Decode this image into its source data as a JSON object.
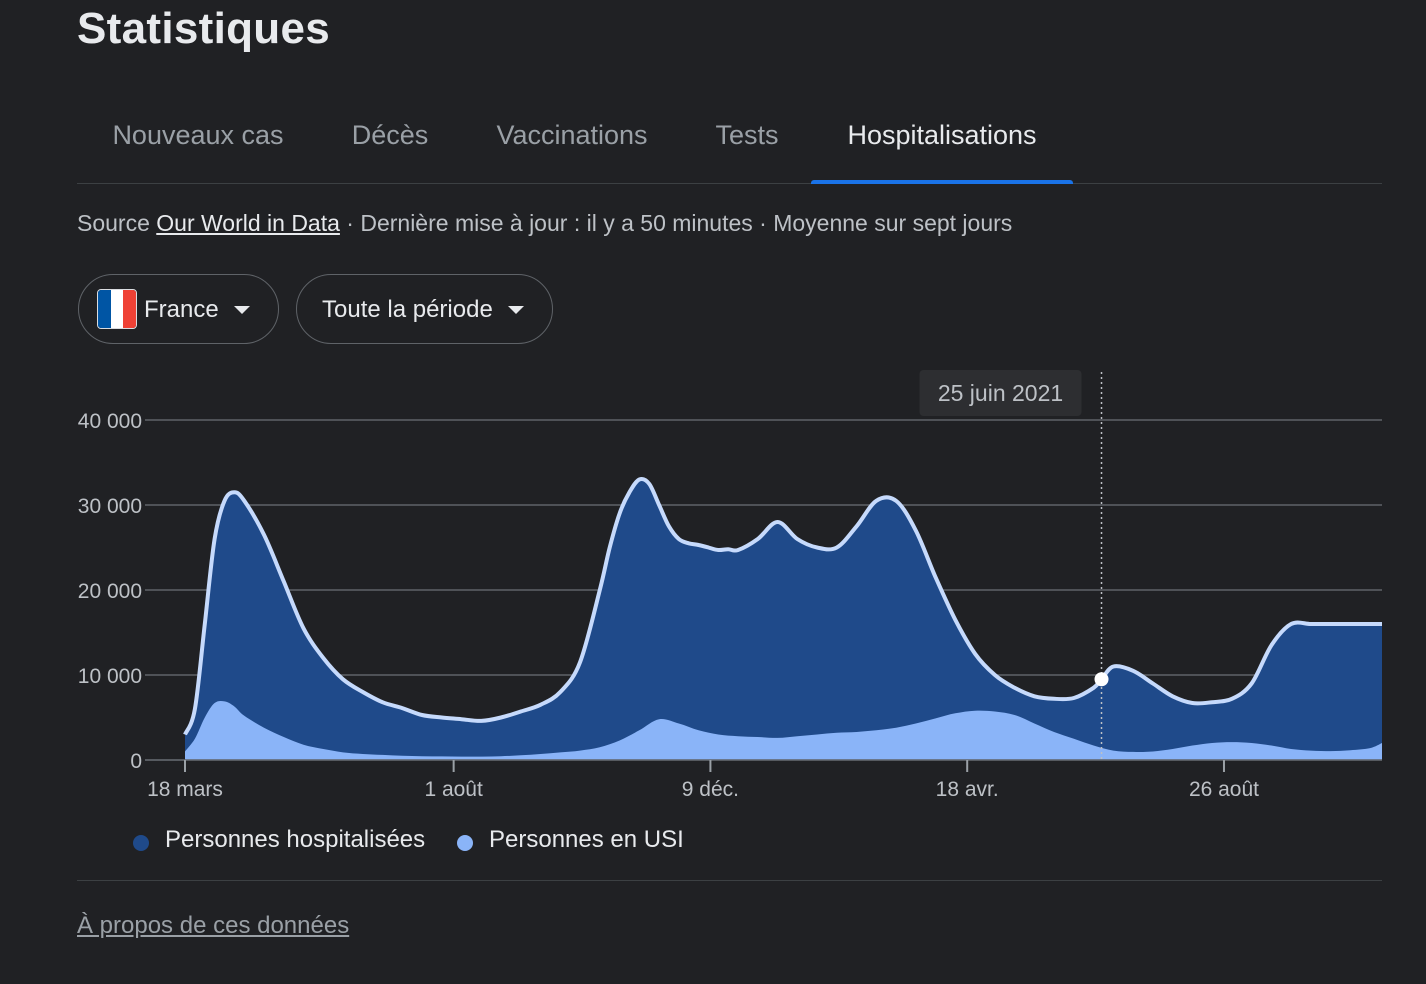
{
  "page": {
    "title": "Statistiques"
  },
  "tabs": [
    {
      "label": "Nouveaux cas",
      "active": false
    },
    {
      "label": "Décès",
      "active": false
    },
    {
      "label": "Vaccinations",
      "active": false
    },
    {
      "label": "Tests",
      "active": false
    },
    {
      "label": "Hospitalisations",
      "active": true
    }
  ],
  "source": {
    "prefix": "Source",
    "link": "Our World in Data",
    "rest": "· Dernière mise à jour : il y a 50 minutes · Moyenne sur sept jours"
  },
  "filters": {
    "country": "France",
    "period": "Toute la période"
  },
  "colors": {
    "background": "#202124",
    "accent": "#1a73e8",
    "hospitalized_fill": "#1f4a8a",
    "hospitalized_line": "#c6dafc",
    "icu_fill": "#8ab4f8",
    "flag_blue": "#0055a4",
    "flag_white": "#ffffff",
    "flag_red": "#ef4135"
  },
  "chart_data": {
    "type": "area",
    "tooltip_label": "25 juin 2021",
    "y_ticks": [
      0,
      10000,
      20000,
      30000,
      40000
    ],
    "y_tick_labels": [
      "0",
      "10 000",
      "20 000",
      "30 000",
      "40 000"
    ],
    "ylim": [
      0,
      40000
    ],
    "x_range_days": [
      0,
      606
    ],
    "x_ticks": [
      {
        "day": 0,
        "label": "18 mars"
      },
      {
        "day": 136,
        "label": "1 août"
      },
      {
        "day": 266,
        "label": "9 déc."
      },
      {
        "day": 396,
        "label": "18 avr."
      },
      {
        "day": 526,
        "label": "26 août"
      }
    ],
    "highlight_day": 464,
    "series": [
      {
        "name": "Personnes hospitalisées",
        "days": [
          0,
          5,
          10,
          15,
          20,
          25,
          30,
          40,
          50,
          60,
          70,
          80,
          90,
          100,
          110,
          120,
          130,
          140,
          150,
          160,
          170,
          180,
          190,
          200,
          210,
          215,
          220,
          225,
          230,
          235,
          240,
          245,
          250,
          255,
          260,
          265,
          270,
          275,
          280,
          290,
          300,
          310,
          320,
          330,
          340,
          350,
          360,
          370,
          380,
          390,
          400,
          410,
          420,
          430,
          440,
          450,
          460,
          464,
          470,
          480,
          490,
          500,
          510,
          520,
          530,
          540,
          550,
          560,
          570,
          580,
          590,
          600,
          606
        ],
        "values": [
          3000,
          6000,
          16000,
          26000,
          30500,
          31500,
          30500,
          26500,
          21000,
          15500,
          12000,
          9500,
          8000,
          6800,
          6100,
          5300,
          5000,
          4800,
          4600,
          5000,
          5700,
          6500,
          8000,
          11500,
          20000,
          25000,
          29000,
          31500,
          33000,
          32500,
          30000,
          27500,
          26000,
          25500,
          25300,
          25000,
          24700,
          24800,
          24700,
          26000,
          28000,
          26000,
          25000,
          25000,
          27500,
          30500,
          30500,
          27000,
          21500,
          16500,
          12500,
          10000,
          8500,
          7500,
          7200,
          7300,
          8500,
          9500,
          11000,
          10500,
          9000,
          7500,
          6700,
          6800,
          7200,
          9000,
          13500,
          16000,
          16000,
          16000,
          16000,
          16000,
          16000
        ]
      },
      {
        "name": "Personnes en USI",
        "days": [
          0,
          5,
          10,
          15,
          20,
          25,
          30,
          40,
          50,
          60,
          70,
          80,
          90,
          100,
          110,
          120,
          130,
          140,
          150,
          160,
          170,
          180,
          190,
          200,
          210,
          220,
          230,
          240,
          250,
          260,
          270,
          280,
          290,
          300,
          310,
          320,
          330,
          340,
          350,
          360,
          370,
          380,
          390,
          400,
          410,
          420,
          430,
          440,
          450,
          460,
          470,
          480,
          490,
          500,
          510,
          520,
          530,
          540,
          550,
          560,
          570,
          580,
          590,
          600,
          606
        ],
        "values": [
          1000,
          2500,
          5000,
          6700,
          6900,
          6300,
          5200,
          3800,
          2700,
          1800,
          1300,
          900,
          700,
          600,
          500,
          450,
          420,
          400,
          400,
          450,
          550,
          700,
          900,
          1100,
          1500,
          2300,
          3500,
          4800,
          4300,
          3500,
          3000,
          2800,
          2700,
          2600,
          2800,
          3000,
          3200,
          3300,
          3500,
          3800,
          4300,
          4900,
          5500,
          5800,
          5700,
          5300,
          4300,
          3300,
          2500,
          1700,
          1100,
          950,
          1000,
          1300,
          1700,
          2000,
          2100,
          2000,
          1700,
          1300,
          1100,
          1050,
          1150,
          1400,
          2000
        ]
      }
    ],
    "legend_position": "bottom-left",
    "grid": true
  },
  "legend": [
    {
      "label": "Personnes hospitalisées",
      "color": "#1f4a8a"
    },
    {
      "label": "Personnes en USI",
      "color": "#8ab4f8"
    }
  ],
  "footer": {
    "about_link": "À propos de ces données"
  }
}
